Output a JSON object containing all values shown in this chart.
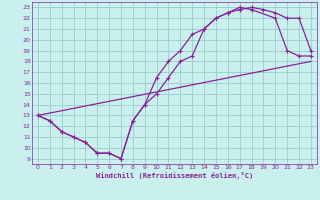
{
  "xlabel": "Windchill (Refroidissement éolien,°C)",
  "bg_color": "#caf0ee",
  "line_color": "#882299",
  "grid_color": "#99cccc",
  "xlim": [
    -0.5,
    23.5
  ],
  "ylim": [
    8.5,
    23.5
  ],
  "xticks": [
    0,
    1,
    2,
    3,
    4,
    5,
    6,
    7,
    8,
    9,
    10,
    11,
    12,
    13,
    14,
    15,
    16,
    17,
    18,
    19,
    20,
    21,
    22,
    23
  ],
  "yticks": [
    9,
    10,
    11,
    12,
    13,
    14,
    15,
    16,
    17,
    18,
    19,
    20,
    21,
    22,
    23
  ],
  "curve1_x": [
    0,
    1,
    2,
    3,
    4,
    5,
    6,
    7,
    8,
    9,
    10,
    11,
    12,
    13,
    14,
    15,
    16,
    17,
    18,
    20,
    21,
    22,
    23
  ],
  "curve1_y": [
    13,
    12.5,
    11.5,
    11,
    10.5,
    9.5,
    9.5,
    9,
    12.5,
    14,
    16.5,
    18,
    19,
    20.5,
    21,
    22,
    22.5,
    23,
    22.8,
    22,
    19,
    18.5,
    18.5
  ],
  "curve2_x": [
    0,
    1,
    2,
    3,
    4,
    5,
    6,
    7,
    8,
    9,
    10,
    11,
    12,
    13,
    14,
    15,
    16,
    17,
    18,
    19,
    20,
    21,
    22,
    23
  ],
  "curve2_y": [
    13,
    12.5,
    11.5,
    11,
    10.5,
    9.5,
    9.5,
    9,
    12.5,
    14,
    15,
    16.5,
    18,
    18.5,
    21,
    22,
    22.5,
    22.8,
    23,
    22.8,
    22.5,
    22,
    22,
    19
  ],
  "line3_x": [
    0,
    23
  ],
  "line3_y": [
    13,
    18
  ]
}
